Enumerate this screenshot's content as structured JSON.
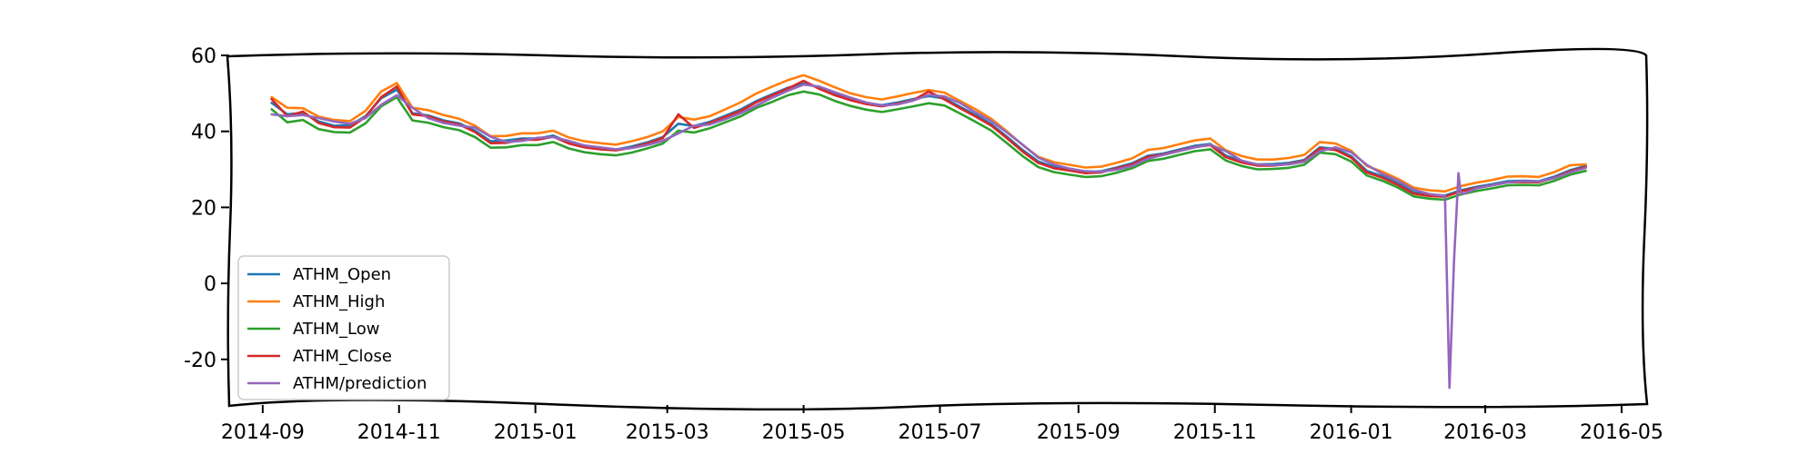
{
  "chart_data": {
    "type": "line",
    "title": "",
    "xlabel": "",
    "ylabel": "",
    "x_range": [
      "2014-08-17",
      "2016-05-12"
    ],
    "ylim": [
      -32,
      60
    ],
    "grid": false,
    "legend_placement": "lower-left",
    "x_ticks": [
      "2014-09",
      "2014-11",
      "2015-01",
      "2015-03",
      "2015-05",
      "2015-07",
      "2015-09",
      "2015-11",
      "2016-01",
      "2016-03",
      "2016-05"
    ],
    "x_tick_dates": [
      "2014-09-01",
      "2014-11-01",
      "2015-01-01",
      "2015-03-01",
      "2015-05-01",
      "2015-07-01",
      "2015-09-01",
      "2015-11-01",
      "2016-01-01",
      "2016-03-01",
      "2016-05-01"
    ],
    "y_ticks": [
      60,
      40,
      20,
      0,
      -20
    ],
    "y_tick_labels": [
      "60",
      "40",
      "20",
      "0",
      "-20"
    ],
    "dates": [
      "2014-09-05",
      "2014-09-12",
      "2014-09-19",
      "2014-09-26",
      "2014-10-03",
      "2014-10-10",
      "2014-10-17",
      "2014-10-24",
      "2014-10-31",
      "2014-11-07",
      "2014-11-14",
      "2014-11-21",
      "2014-11-28",
      "2014-12-05",
      "2014-12-12",
      "2014-12-19",
      "2014-12-26",
      "2015-01-02",
      "2015-01-09",
      "2015-01-16",
      "2015-01-23",
      "2015-01-30",
      "2015-02-06",
      "2015-02-13",
      "2015-02-20",
      "2015-02-27",
      "2015-03-06",
      "2015-03-13",
      "2015-03-20",
      "2015-03-27",
      "2015-04-03",
      "2015-04-10",
      "2015-04-17",
      "2015-04-24",
      "2015-05-01",
      "2015-05-08",
      "2015-05-15",
      "2015-05-22",
      "2015-05-29",
      "2015-06-05",
      "2015-06-12",
      "2015-06-19",
      "2015-06-26",
      "2015-07-03",
      "2015-07-10",
      "2015-07-17",
      "2015-07-24",
      "2015-07-31",
      "2015-08-07",
      "2015-08-14",
      "2015-08-21",
      "2015-08-28",
      "2015-09-04",
      "2015-09-11",
      "2015-09-18",
      "2015-09-25",
      "2015-10-02",
      "2015-10-09",
      "2015-10-16",
      "2015-10-23",
      "2015-10-30",
      "2015-11-06",
      "2015-11-13",
      "2015-11-20",
      "2015-11-27",
      "2015-12-04",
      "2015-12-11",
      "2015-12-18",
      "2015-12-25",
      "2016-01-01",
      "2016-01-08",
      "2016-01-15",
      "2016-01-22",
      "2016-01-29",
      "2016-02-05",
      "2016-02-12",
      "2016-02-19",
      "2016-02-26",
      "2016-03-04",
      "2016-03-11",
      "2016-03-18",
      "2016-03-25",
      "2016-04-01",
      "2016-04-08",
      "2016-04-15"
    ],
    "series": [
      {
        "name": "ATHM_Open",
        "color": "#1f77b4",
        "values": [
          47.5,
          44.5,
          44.9,
          42.6,
          41.5,
          41.6,
          44.0,
          48.7,
          51.0,
          44.8,
          44.2,
          42.9,
          42.1,
          40.2,
          37.4,
          37.6,
          38.1,
          38.1,
          38.9,
          37.1,
          36.1,
          35.6,
          35.2,
          36.0,
          37.1,
          38.5,
          42.0,
          41.4,
          42.5,
          44.1,
          45.8,
          48.0,
          49.8,
          51.5,
          52.6,
          51.6,
          49.9,
          48.5,
          47.5,
          46.9,
          47.6,
          48.5,
          49.3,
          48.7,
          46.5,
          44.3,
          41.9,
          38.6,
          35.1,
          32.1,
          30.7,
          30.0,
          29.3,
          29.5,
          30.5,
          31.6,
          33.6,
          34.2,
          35.2,
          36.2,
          36.7,
          33.6,
          32.2,
          31.3,
          31.4,
          31.7,
          32.5,
          35.8,
          35.4,
          33.5,
          29.6,
          28.2,
          26.3,
          24.0,
          23.4,
          23.1,
          24.5,
          25.4,
          26.1,
          26.9,
          27.0,
          26.9,
          28.1,
          29.8,
          30.9
        ]
      },
      {
        "name": "ATHM_High",
        "color": "#ff7f0e",
        "values": [
          49.0,
          46.2,
          46.1,
          43.9,
          43.0,
          42.7,
          45.4,
          50.5,
          52.7,
          46.2,
          45.6,
          44.3,
          43.3,
          41.5,
          38.7,
          38.8,
          39.5,
          39.5,
          40.2,
          38.4,
          37.4,
          36.9,
          36.5,
          37.4,
          38.5,
          40.0,
          43.8,
          43.1,
          44.0,
          45.8,
          47.7,
          50.0,
          51.8,
          53.5,
          54.8,
          53.3,
          51.6,
          50.0,
          49.0,
          48.4,
          49.2,
          50.1,
          50.9,
          50.2,
          48.0,
          45.8,
          43.3,
          40.0,
          36.4,
          33.3,
          31.9,
          31.2,
          30.5,
          30.7,
          31.7,
          32.9,
          35.1,
          35.6,
          36.6,
          37.6,
          38.1,
          35.0,
          33.5,
          32.6,
          32.6,
          33.0,
          33.8,
          37.2,
          36.8,
          34.9,
          30.9,
          29.4,
          27.5,
          25.2,
          24.5,
          24.2,
          25.6,
          26.5,
          27.2,
          28.1,
          28.2,
          28.0,
          29.3,
          31.1,
          31.3
        ]
      },
      {
        "name": "ATHM_Low",
        "color": "#2ca02c",
        "values": [
          45.8,
          42.4,
          43.0,
          40.6,
          39.8,
          39.7,
          42.1,
          46.6,
          49.0,
          42.9,
          42.3,
          41.1,
          40.3,
          38.5,
          35.7,
          35.8,
          36.4,
          36.4,
          37.2,
          35.5,
          34.5,
          34.0,
          33.7,
          34.4,
          35.5,
          36.8,
          40.2,
          39.7,
          40.8,
          42.4,
          44.0,
          46.2,
          47.8,
          49.5,
          50.5,
          49.7,
          48.0,
          46.7,
          45.7,
          45.1,
          45.8,
          46.6,
          47.4,
          46.8,
          44.7,
          42.5,
          40.2,
          36.9,
          33.5,
          30.6,
          29.3,
          28.6,
          28.0,
          28.2,
          29.1,
          30.3,
          32.2,
          32.8,
          33.8,
          34.8,
          35.3,
          32.3,
          30.9,
          30.0,
          30.1,
          30.4,
          31.2,
          34.4,
          34.0,
          32.1,
          28.4,
          27.0,
          25.2,
          22.9,
          22.3,
          22.0,
          23.4,
          24.3,
          25.0,
          25.8,
          25.9,
          25.8,
          27.0,
          28.6,
          29.6
        ]
      },
      {
        "name": "ATHM_Close",
        "color": "#d62728",
        "values": [
          48.5,
          44.0,
          45.2,
          42.2,
          41.1,
          41.0,
          43.8,
          49.0,
          51.8,
          44.5,
          44.0,
          42.6,
          41.8,
          39.8,
          36.9,
          37.0,
          37.8,
          37.8,
          38.6,
          36.8,
          35.8,
          35.3,
          35.0,
          35.7,
          36.8,
          38.2,
          44.5,
          40.9,
          42.2,
          43.8,
          45.4,
          47.7,
          49.5,
          51.3,
          53.3,
          51.2,
          49.5,
          48.2,
          47.2,
          46.6,
          47.3,
          48.2,
          50.5,
          48.4,
          46.1,
          43.9,
          41.5,
          38.2,
          34.7,
          31.7,
          30.3,
          29.7,
          29.0,
          29.2,
          30.2,
          31.3,
          33.3,
          33.9,
          34.9,
          35.9,
          36.4,
          33.2,
          31.8,
          31.0,
          31.0,
          31.4,
          32.2,
          35.5,
          35.1,
          33.1,
          29.2,
          27.8,
          25.9,
          23.6,
          23.0,
          22.8,
          24.2,
          25.1,
          25.8,
          26.6,
          26.7,
          26.6,
          27.8,
          29.5,
          30.6
        ]
      },
      {
        "name": "ATHM/prediction",
        "color": "#9467bd",
        "values": [
          44.5,
          44.0,
          44.3,
          43.5,
          42.6,
          42.0,
          43.5,
          47.0,
          49.5,
          46.2,
          43.5,
          42.2,
          41.5,
          41.0,
          38.6,
          37.2,
          37.5,
          38.3,
          38.5,
          37.5,
          36.3,
          35.8,
          35.3,
          35.6,
          36.4,
          37.5,
          39.5,
          41.5,
          41.8,
          43.2,
          44.8,
          46.8,
          48.9,
          50.7,
          52.3,
          51.8,
          50.3,
          48.9,
          47.6,
          46.8,
          47.1,
          48.1,
          49.6,
          49.2,
          47.5,
          45.0,
          42.7,
          39.7,
          36.5,
          33.1,
          31.3,
          30.2,
          29.5,
          29.4,
          29.9,
          30.9,
          32.8,
          33.8,
          34.8,
          35.8,
          36.5,
          34.8,
          32.3,
          31.3,
          31.1,
          31.3,
          32.0,
          34.8,
          35.8,
          34.5,
          31.2,
          28.8,
          27.0,
          24.7,
          23.5,
          23.0,
          24.0,
          25.0,
          25.8,
          26.6,
          26.9,
          26.8,
          27.7,
          29.2,
          30.4
        ]
      }
    ],
    "prediction_spike": {
      "series": "ATHM/prediction",
      "dates": [
        "2016-02-12",
        "2016-02-14",
        "2016-02-16",
        "2016-02-18",
        "2016-02-20"
      ],
      "values": [
        22.5,
        -27.5,
        6.0,
        29.0,
        23.5
      ]
    }
  }
}
